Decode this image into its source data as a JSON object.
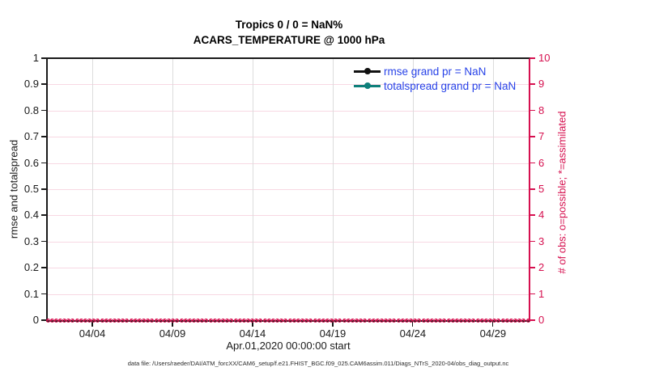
{
  "figure": {
    "title": "Tropics 0 / 0 = NaN%",
    "subtitle": "ACARS_TEMPERATURE @ 1000 hPa",
    "footer_note": "data file: /Users/raeder/DAI/ATM_forcXX/CAM6_setup/f.e21.FHIST_BGC.f09_025.CAM6assim.011/Diags_NTrS_2020-04/obs_diag_output.nc"
  },
  "colors": {
    "crimson": "#D6104F",
    "grid_pink": "#F8D8E3",
    "grid_gray": "#DCDCDC",
    "axis_dark": "#1a1a1a",
    "legend_text_blue": "#2742E8",
    "series_black": "#111111",
    "series_teal": "#0F807B"
  },
  "chart_data": {
    "type": "line",
    "title": "Tropics 0 / 0 = NaN%",
    "subtitle": "ACARS_TEMPERATURE @ 1000 hPa",
    "grid": true,
    "legend_position": "upper-right-inside, no box",
    "x_axis": {
      "label": "Apr.01,2020 00:00:00 start",
      "tick_labels": [
        "04/04",
        "04/09",
        "04/14",
        "04/19",
        "04/24",
        "04/29"
      ],
      "tick_days": [
        3,
        8,
        13,
        18,
        23,
        28
      ],
      "range_days": [
        0.12,
        30.33
      ]
    },
    "left_axis": {
      "label": "rmse and totalspread",
      "min": 0,
      "max": 1,
      "tick_labels": [
        "0",
        "0.1",
        "0.2",
        "0.3",
        "0.4",
        "0.5",
        "0.6",
        "0.7",
        "0.8",
        "0.9",
        "1"
      ]
    },
    "right_axis": {
      "label": "# of obs: o=possible; *=assimilated",
      "min": 0,
      "max": 10,
      "tick_labels": [
        "0",
        "1",
        "2",
        "3",
        "4",
        "5",
        "6",
        "7",
        "8",
        "9",
        "10"
      ]
    },
    "series": [
      {
        "name": "rmse grand pr = NaN",
        "color": "#111111",
        "values": []
      },
      {
        "name": "totalspread grand pr = NaN",
        "color": "#0F807B",
        "values": []
      }
    ],
    "obs_markers": {
      "meaning": "o=possible; *=assimilated observation counts",
      "count": 116,
      "y_value": 0
    }
  }
}
